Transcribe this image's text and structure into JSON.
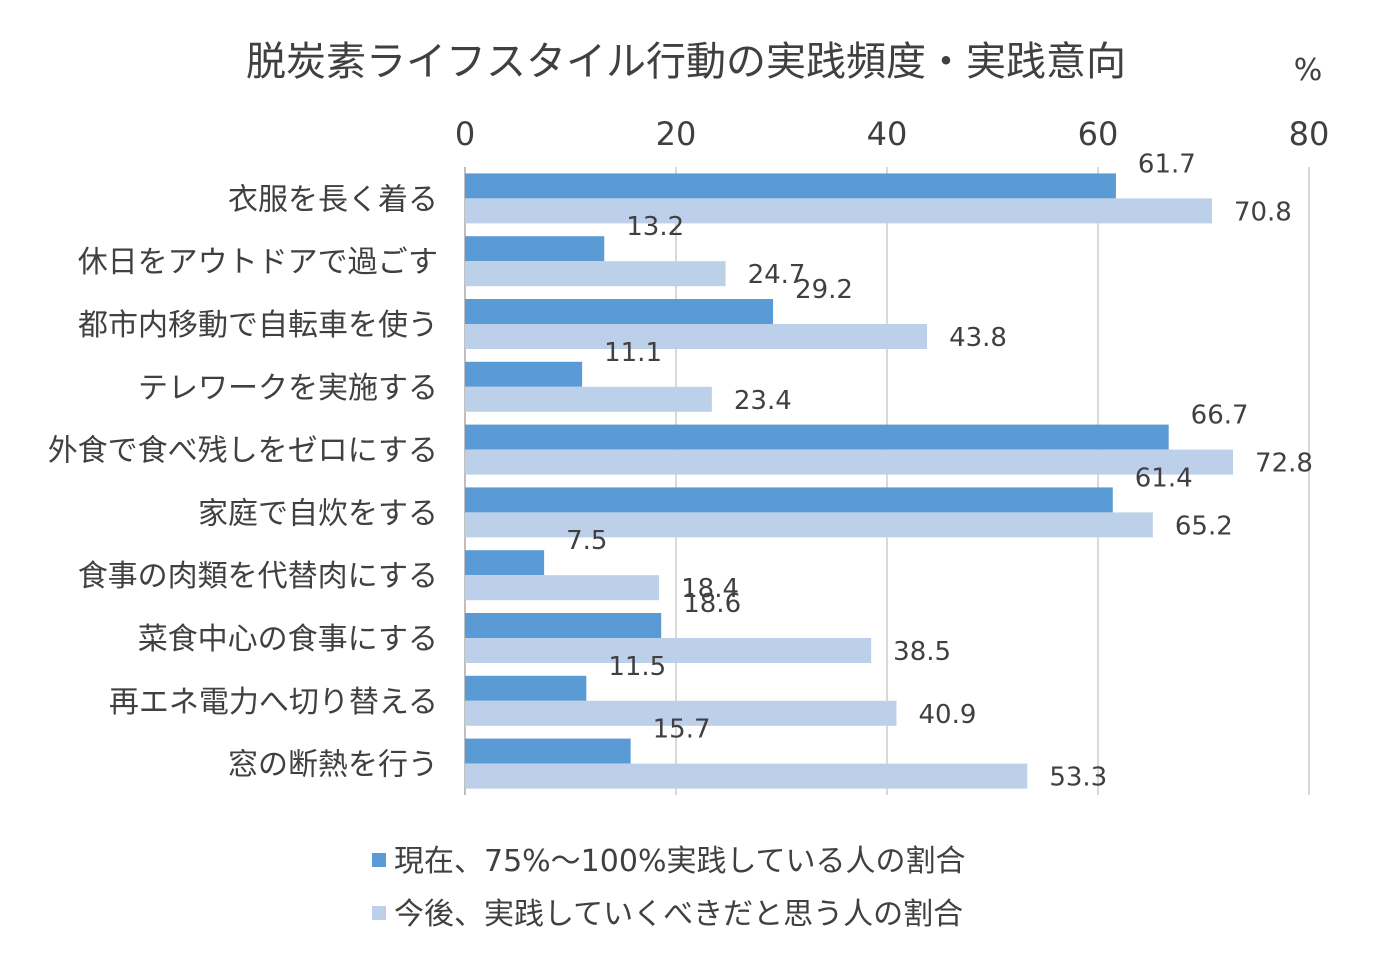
{
  "chart_data": {
    "type": "bar",
    "orientation": "horizontal",
    "title": "脱炭素ライフスタイル行動の実践頻度・実践意向",
    "unit_label": "%",
    "xlim": [
      0,
      80
    ],
    "xticks": [
      0,
      20,
      40,
      60,
      80
    ],
    "grid": true,
    "legend_position": "bottom",
    "categories": [
      "衣服を長く着る",
      "休日をアウトドアで過ごす",
      "都市内移動で自転車を使う",
      "テレワークを実施する",
      "外食で食べ残しをゼロにする",
      "家庭で自炊をする",
      "食事の肉類を代替肉にする",
      "菜食中心の食事にする",
      "再エネ電力へ切り替える",
      "窓の断熱を行う"
    ],
    "series": [
      {
        "name": "現在、75%～100%実践している人の割合",
        "color": "#5b9bd5",
        "values": [
          61.7,
          13.2,
          29.2,
          11.1,
          66.7,
          61.4,
          7.5,
          18.6,
          11.5,
          15.7
        ],
        "labels": [
          "61.7",
          "13.2",
          "29.2",
          "11.1",
          "66.7",
          "61.4",
          "7.5",
          "18.6",
          "11.5",
          "15.7"
        ]
      },
      {
        "name": "今後、実践していくべきだと思う人の割合",
        "color": "#bdd0ea",
        "values": [
          70.8,
          24.7,
          43.8,
          23.4,
          72.8,
          65.2,
          18.4,
          38.5,
          40.9,
          53.3
        ],
        "labels": [
          "70.8",
          "24.7",
          "43.8",
          "23.4",
          "72.8",
          "65.2",
          "18.4",
          "38.5",
          "40.9",
          "53.3"
        ]
      }
    ]
  }
}
